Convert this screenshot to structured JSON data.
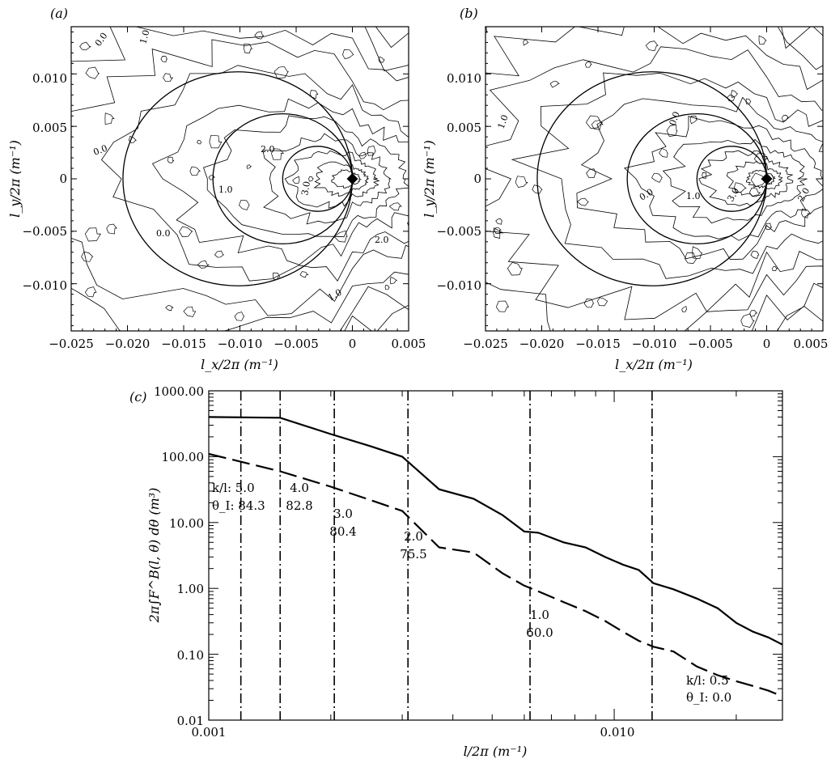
{
  "panels": {
    "a": {
      "label": "(a)",
      "xlabel": "l_x/2π (m⁻¹)",
      "ylabel": "l_y/2π (m⁻¹)",
      "xticks": [
        "−0.025",
        "−0.020",
        "−0.015",
        "−0.010",
        "−0.005",
        "0",
        "0.005"
      ],
      "yticks": [
        "0.010",
        "0.005",
        "0",
        "−0.005",
        "−0.010"
      ],
      "contour_labels": [
        "0.0",
        "1.0",
        "2.0",
        "0.0",
        "1.0",
        "3.0",
        "0.0",
        "2.0",
        "1.0"
      ]
    },
    "b": {
      "label": "(b)",
      "xlabel": "l_x/2π (m⁻¹)",
      "ylabel": "l_y/2π (m⁻¹)",
      "xticks": [
        "−0.025",
        "−0.020",
        "−0.015",
        "−0.010",
        "−0.005",
        "0",
        "0.005"
      ],
      "yticks": [
        "0.010",
        "0.005",
        "0",
        "−0.005",
        "−0.010"
      ],
      "contour_labels": [
        "1.0",
        "0.0",
        "0.0",
        "1.0",
        "3.0",
        "2.0"
      ]
    },
    "c": {
      "label": "(c)",
      "xlabel": "l/2π (m⁻¹)",
      "ylabel": "2π∫F^B(l, θ) dθ (m³)",
      "xticks": [
        "0.001",
        "0.010"
      ],
      "yticks": [
        "1000.00",
        "100.00",
        "10.00",
        "1.00",
        "0.10",
        "0.01"
      ]
    }
  },
  "annotations_c": [
    {
      "kl": "k/l: 5.0",
      "theta": "θ_I: 84.3"
    },
    {
      "kl": "4.0",
      "theta": "82.8"
    },
    {
      "kl": "3.0",
      "theta": "80.4"
    },
    {
      "kl": "2.0",
      "theta": "75.5"
    },
    {
      "kl": "1.0",
      "theta": "60.0"
    },
    {
      "kl": "k/l: 0.5",
      "theta": "θ_I: 0.0"
    }
  ],
  "chart_data": [
    {
      "type": "heatmap",
      "panel": "a",
      "xlim": [
        -0.025,
        0.005
      ],
      "ylim": [
        -0.0145,
        0.0145
      ],
      "circles": [
        {
          "cx": -0.0102,
          "cy": 0,
          "r": 0.0102
        },
        {
          "cx": -0.0062,
          "cy": 0,
          "r": 0.0062
        },
        {
          "cx": -0.0031,
          "cy": 0,
          "r": 0.0031
        }
      ],
      "marker": {
        "x": 0,
        "y": 0
      }
    },
    {
      "type": "heatmap",
      "panel": "b",
      "xlim": [
        -0.025,
        0.005
      ],
      "ylim": [
        -0.0145,
        0.0145
      ],
      "circles": [
        {
          "cx": -0.0102,
          "cy": 0,
          "r": 0.0102
        },
        {
          "cx": -0.0062,
          "cy": 0,
          "r": 0.0062
        },
        {
          "cx": -0.0031,
          "cy": 0,
          "r": 0.0031
        }
      ],
      "marker": {
        "x": 0,
        "y": 0
      }
    },
    {
      "type": "line",
      "panel": "c",
      "xscale": "log",
      "yscale": "log",
      "xlim": [
        0.001,
        0.026
      ],
      "ylim": [
        0.01,
        1000
      ],
      "series": [
        {
          "style": "solid",
          "x": [
            0.001,
            0.0015,
            0.002,
            0.0025,
            0.003,
            0.0037,
            0.0045,
            0.0053,
            0.006,
            0.0065,
            0.0075,
            0.0085,
            0.0095,
            0.0105,
            0.0115,
            0.0125,
            0.014,
            0.016,
            0.018,
            0.02,
            0.022,
            0.024,
            0.026
          ],
          "y": [
            400,
            390,
            220,
            145,
            100,
            32,
            23,
            13,
            7.3,
            7.0,
            5.0,
            4.2,
            3.0,
            2.3,
            1.9,
            1.2,
            0.97,
            0.7,
            0.5,
            0.3,
            0.22,
            0.18,
            0.14
          ]
        },
        {
          "style": "dashed",
          "x": [
            0.001,
            0.0015,
            0.002,
            0.0025,
            0.003,
            0.0037,
            0.0045,
            0.0053,
            0.006,
            0.0065,
            0.0075,
            0.0085,
            0.0095,
            0.0105,
            0.0115,
            0.0125,
            0.014,
            0.016,
            0.018,
            0.02,
            0.022,
            0.024,
            0.026
          ],
          "y": [
            110,
            60,
            35,
            22,
            15,
            4.2,
            3.5,
            1.7,
            1.1,
            0.9,
            0.62,
            0.45,
            0.32,
            0.22,
            0.16,
            0.13,
            0.11,
            0.065,
            0.048,
            0.039,
            0.033,
            0.028,
            0.023
          ]
        }
      ],
      "vlines": [
        0.0012,
        0.0015,
        0.00204,
        0.0031,
        0.0062,
        0.0124
      ]
    }
  ]
}
